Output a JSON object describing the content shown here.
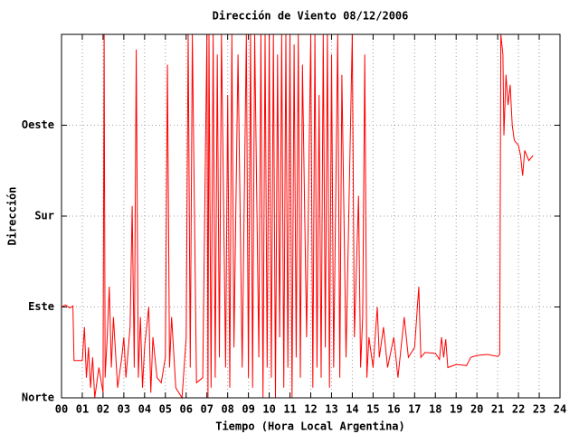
{
  "chart_data": {
    "type": "line",
    "title": "Dirección de Viento 08/12/2006",
    "xlabel": "Tiempo (Hora Local Argentina)",
    "ylabel": "Dirección",
    "color": "#ff0000",
    "grid": true,
    "xlim": [
      0,
      24
    ],
    "xticks": [
      {
        "value": 0,
        "label": "00"
      },
      {
        "value": 1,
        "label": "01"
      },
      {
        "value": 2,
        "label": "02"
      },
      {
        "value": 3,
        "label": "03"
      },
      {
        "value": 4,
        "label": "04"
      },
      {
        "value": 5,
        "label": "05"
      },
      {
        "value": 6,
        "label": "06"
      },
      {
        "value": 7,
        "label": "07"
      },
      {
        "value": 8,
        "label": "08"
      },
      {
        "value": 9,
        "label": "09"
      },
      {
        "value": 10,
        "label": "10"
      },
      {
        "value": 11,
        "label": "11"
      },
      {
        "value": 12,
        "label": "12"
      },
      {
        "value": 13,
        "label": "13"
      },
      {
        "value": 14,
        "label": "14"
      },
      {
        "value": 15,
        "label": "15"
      },
      {
        "value": 16,
        "label": "16"
      },
      {
        "value": 17,
        "label": "17"
      },
      {
        "value": 18,
        "label": "18"
      },
      {
        "value": 19,
        "label": "19"
      },
      {
        "value": 20,
        "label": "20"
      },
      {
        "value": 21,
        "label": "21"
      },
      {
        "value": 22,
        "label": "22"
      },
      {
        "value": 23,
        "label": "23"
      },
      {
        "value": 24,
        "label": "24"
      }
    ],
    "ylim": [
      0,
      360
    ],
    "yticks": [
      {
        "value": 0,
        "label": "Norte"
      },
      {
        "value": 90,
        "label": "Este"
      },
      {
        "value": 180,
        "label": "Sur"
      },
      {
        "value": 270,
        "label": "Oeste"
      }
    ],
    "x": [
      0.0,
      0.2,
      0.4,
      0.55,
      0.6,
      1.0,
      1.1,
      1.2,
      1.3,
      1.4,
      1.5,
      1.6,
      1.8,
      2.0,
      2.05,
      2.1,
      2.2,
      2.3,
      2.4,
      2.5,
      2.7,
      2.9,
      3.0,
      3.1,
      3.3,
      3.4,
      3.5,
      3.6,
      3.7,
      3.8,
      3.9,
      4.0,
      4.2,
      4.3,
      4.4,
      4.6,
      4.8,
      5.0,
      5.1,
      5.2,
      5.3,
      5.5,
      5.8,
      6.0,
      6.1,
      6.2,
      6.3,
      6.5,
      6.8,
      7.0,
      7.05,
      7.1,
      7.2,
      7.3,
      7.4,
      7.5,
      7.6,
      7.7,
      7.9,
      8.0,
      8.1,
      8.2,
      8.3,
      8.5,
      8.7,
      8.9,
      9.0,
      9.1,
      9.2,
      9.3,
      9.5,
      9.6,
      9.7,
      9.8,
      9.9,
      10.0,
      10.1,
      10.2,
      10.3,
      10.4,
      10.5,
      10.6,
      10.7,
      10.8,
      10.9,
      11.0,
      11.1,
      11.2,
      11.3,
      11.4,
      11.5,
      11.6,
      11.8,
      12.0,
      12.1,
      12.2,
      12.3,
      12.4,
      12.5,
      12.6,
      12.7,
      12.8,
      12.9,
      13.0,
      13.1,
      13.3,
      13.4,
      13.5,
      13.7,
      14.0,
      14.1,
      14.3,
      14.4,
      14.5,
      14.6,
      14.7,
      14.8,
      15.0,
      15.2,
      15.3,
      15.5,
      15.7,
      16.0,
      16.2,
      16.5,
      16.7,
      17.0,
      17.2,
      17.3,
      17.5,
      18.0,
      18.2,
      18.3,
      18.4,
      18.5,
      18.6,
      19.0,
      19.5,
      19.7,
      20.0,
      20.5,
      21.0,
      21.1,
      21.15,
      21.25,
      21.3,
      21.4,
      21.5,
      21.6,
      21.7,
      21.8,
      22.0,
      22.1,
      22.2,
      22.3,
      22.5,
      22.7
    ],
    "values": [
      90,
      92,
      89,
      91,
      37,
      37,
      70,
      20,
      50,
      10,
      40,
      0,
      30,
      5,
      360,
      20,
      60,
      110,
      30,
      80,
      10,
      40,
      60,
      20,
      70,
      190,
      30,
      345,
      20,
      80,
      10,
      50,
      90,
      5,
      60,
      20,
      15,
      40,
      330,
      30,
      80,
      10,
      0,
      60,
      360,
      30,
      360,
      15,
      20,
      360,
      0,
      360,
      10,
      360,
      20,
      340,
      40,
      360,
      30,
      300,
      10,
      360,
      50,
      340,
      30,
      360,
      20,
      360,
      10,
      360,
      40,
      360,
      0,
      360,
      30,
      360,
      20,
      360,
      0,
      340,
      60,
      360,
      10,
      360,
      30,
      360,
      0,
      350,
      40,
      360,
      20,
      330,
      60,
      360,
      10,
      360,
      30,
      300,
      20,
      360,
      50,
      360,
      10,
      340,
      30,
      360,
      20,
      320,
      40,
      360,
      60,
      200,
      30,
      80,
      340,
      20,
      60,
      30,
      90,
      40,
      70,
      30,
      60,
      20,
      80,
      40,
      50,
      110,
      40,
      45,
      44,
      38,
      60,
      40,
      58,
      30,
      33,
      32,
      40,
      42,
      43,
      41,
      43,
      360,
      340,
      260,
      320,
      290,
      310,
      270,
      255,
      250,
      240,
      220,
      245,
      235,
      240
    ]
  }
}
